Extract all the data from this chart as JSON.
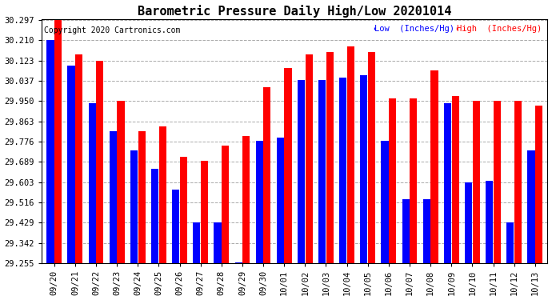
{
  "title": "Barometric Pressure Daily High/Low 20201014",
  "copyright": "Copyright 2020 Cartronics.com",
  "legend_low": "Low  (Inches/Hg)",
  "legend_high": "High  (Inches/Hg)",
  "dates": [
    "09/20",
    "09/21",
    "09/22",
    "09/23",
    "09/24",
    "09/25",
    "09/26",
    "09/27",
    "09/28",
    "09/29",
    "09/30",
    "10/01",
    "10/02",
    "10/03",
    "10/04",
    "10/05",
    "10/06",
    "10/07",
    "10/08",
    "10/09",
    "10/10",
    "10/11",
    "10/12",
    "10/13"
  ],
  "high_values": [
    30.297,
    30.15,
    30.123,
    29.95,
    29.82,
    29.84,
    29.71,
    29.695,
    29.76,
    29.8,
    30.01,
    30.09,
    30.15,
    30.16,
    30.185,
    30.16,
    29.96,
    29.96,
    30.08,
    29.97,
    29.95,
    29.95,
    29.95,
    29.93
  ],
  "low_values": [
    30.21,
    30.1,
    29.94,
    29.82,
    29.74,
    29.66,
    29.57,
    29.43,
    29.43,
    29.26,
    29.78,
    29.795,
    30.04,
    30.04,
    30.05,
    30.06,
    29.78,
    29.53,
    29.53,
    29.94,
    29.6,
    29.61,
    29.43,
    29.74
  ],
  "low_color": "#0000ff",
  "high_color": "#ff0000",
  "bg_color": "#ffffff",
  "grid_color": "#aaaaaa",
  "ymin": 29.255,
  "ymax": 30.297,
  "yticks": [
    29.255,
    29.342,
    29.429,
    29.516,
    29.603,
    29.689,
    29.776,
    29.863,
    29.95,
    30.037,
    30.123,
    30.21,
    30.297
  ],
  "title_fontsize": 11,
  "tick_fontsize": 7.5,
  "copyright_fontsize": 7,
  "bar_width": 0.35,
  "bar_gap": 0.02
}
